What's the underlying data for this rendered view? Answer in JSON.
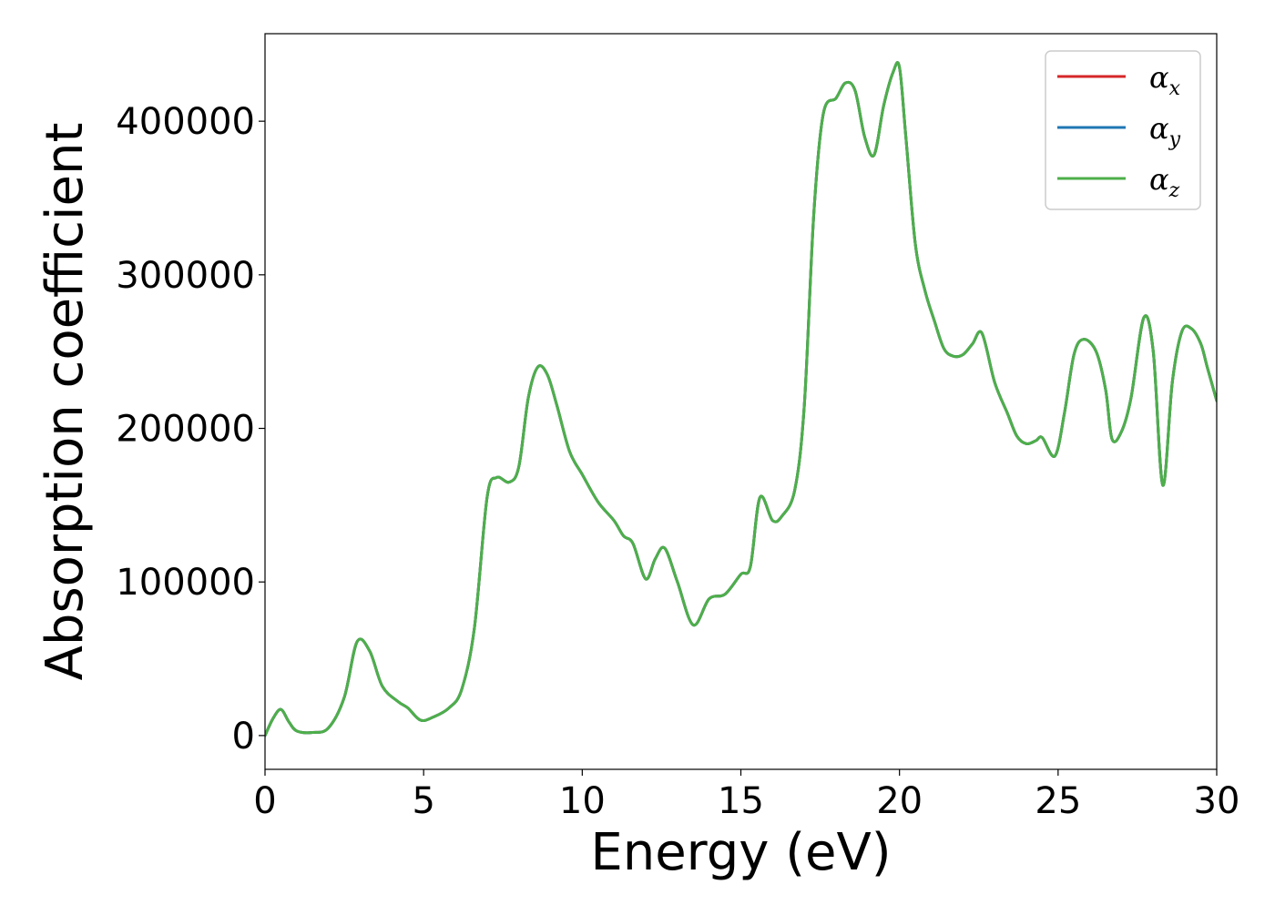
{
  "chart_data": {
    "type": "line",
    "xlabel": "Energy (eV)",
    "ylabel": "Absorption coefficient",
    "xlim": [
      0,
      30
    ],
    "ylim": [
      -22000,
      457000
    ],
    "xticks": [
      0,
      5,
      10,
      15,
      20,
      25,
      30
    ],
    "xtick_labels": [
      "0",
      "5",
      "10",
      "15",
      "20",
      "25",
      "30"
    ],
    "yticks": [
      0,
      100000,
      200000,
      300000,
      400000
    ],
    "ytick_labels": [
      "0",
      "100000",
      "200000",
      "300000",
      "400000"
    ],
    "grid": false,
    "legend_position": "top-right",
    "colors": {
      "alpha_x": "#d62728",
      "alpha_y": "#1f77b4",
      "alpha_z": "#4daf4a",
      "frame": "#000000",
      "legend_border": "#cccccc"
    },
    "series": [
      {
        "name": "α_x",
        "legend_symbol": "α",
        "legend_subscript": "x",
        "color": "#d62728",
        "x": [
          0,
          0.25,
          0.5,
          0.75,
          1.0,
          1.5,
          2.0,
          2.5,
          2.9,
          3.3,
          3.7,
          4.2,
          4.5,
          4.9,
          5.3,
          5.8,
          6.2,
          6.6,
          7.0,
          7.3,
          7.7,
          8.0,
          8.3,
          8.6,
          8.9,
          9.2,
          9.6,
          10.0,
          10.5,
          11.0,
          11.3,
          11.6,
          12.0,
          12.3,
          12.6,
          13.0,
          13.5,
          14.0,
          14.5,
          15.0,
          15.3,
          15.6,
          16.0,
          16.3,
          16.7,
          17.0,
          17.3,
          17.6,
          18.0,
          18.3,
          18.6,
          18.9,
          19.2,
          19.5,
          19.8,
          20.0,
          20.2,
          20.5,
          20.8,
          21.1,
          21.4,
          21.7,
          22.0,
          22.3,
          22.6,
          23.0,
          23.4,
          23.7,
          24.0,
          24.3,
          24.5,
          24.9,
          25.2,
          25.5,
          25.8,
          26.2,
          26.5,
          26.7,
          27.0,
          27.3,
          27.7,
          28.0,
          28.3,
          28.6,
          28.9,
          29.2,
          29.5,
          29.7,
          30.0
        ],
        "y": [
          0,
          11000,
          17000,
          9000,
          3000,
          2000,
          5000,
          25000,
          61000,
          55000,
          32000,
          22000,
          18000,
          10000,
          12000,
          18000,
          30000,
          70000,
          155000,
          168000,
          165000,
          175000,
          220000,
          240000,
          235000,
          215000,
          185000,
          170000,
          152000,
          140000,
          130000,
          125000,
          102000,
          115000,
          122000,
          100000,
          72000,
          89000,
          92000,
          105000,
          110000,
          155000,
          140000,
          143000,
          160000,
          215000,
          340000,
          405000,
          415000,
          425000,
          420000,
          390000,
          378000,
          410000,
          432000,
          435000,
          390000,
          320000,
          290000,
          270000,
          252000,
          247000,
          248000,
          255000,
          262000,
          230000,
          210000,
          195000,
          190000,
          192000,
          194000,
          182000,
          210000,
          248000,
          258000,
          250000,
          225000,
          193000,
          198000,
          220000,
          272000,
          250000,
          163000,
          230000,
          263000,
          265000,
          255000,
          240000,
          218000
        ]
      },
      {
        "name": "α_y",
        "legend_symbol": "α",
        "legend_subscript": "y",
        "color": "#1f77b4",
        "x": [
          0,
          0.25,
          0.5,
          0.75,
          1.0,
          1.5,
          2.0,
          2.5,
          2.9,
          3.3,
          3.7,
          4.2,
          4.5,
          4.9,
          5.3,
          5.8,
          6.2,
          6.6,
          7.0,
          7.3,
          7.7,
          8.0,
          8.3,
          8.6,
          8.9,
          9.2,
          9.6,
          10.0,
          10.5,
          11.0,
          11.3,
          11.6,
          12.0,
          12.3,
          12.6,
          13.0,
          13.5,
          14.0,
          14.5,
          15.0,
          15.3,
          15.6,
          16.0,
          16.3,
          16.7,
          17.0,
          17.3,
          17.6,
          18.0,
          18.3,
          18.6,
          18.9,
          19.2,
          19.5,
          19.8,
          20.0,
          20.2,
          20.5,
          20.8,
          21.1,
          21.4,
          21.7,
          22.0,
          22.3,
          22.6,
          23.0,
          23.4,
          23.7,
          24.0,
          24.3,
          24.5,
          24.9,
          25.2,
          25.5,
          25.8,
          26.2,
          26.5,
          26.7,
          27.0,
          27.3,
          27.7,
          28.0,
          28.3,
          28.6,
          28.9,
          29.2,
          29.5,
          29.7,
          30.0
        ],
        "y": [
          0,
          11000,
          17000,
          9000,
          3000,
          2000,
          5000,
          25000,
          61000,
          55000,
          32000,
          22000,
          18000,
          10000,
          12000,
          18000,
          30000,
          70000,
          155000,
          168000,
          165000,
          175000,
          220000,
          240000,
          235000,
          215000,
          185000,
          170000,
          152000,
          140000,
          130000,
          125000,
          102000,
          115000,
          122000,
          100000,
          72000,
          89000,
          92000,
          105000,
          110000,
          155000,
          140000,
          143000,
          160000,
          215000,
          340000,
          405000,
          415000,
          425000,
          420000,
          390000,
          378000,
          410000,
          432000,
          435000,
          390000,
          320000,
          290000,
          270000,
          252000,
          247000,
          248000,
          255000,
          262000,
          230000,
          210000,
          195000,
          190000,
          192000,
          194000,
          182000,
          210000,
          248000,
          258000,
          250000,
          225000,
          193000,
          198000,
          220000,
          272000,
          250000,
          163000,
          230000,
          263000,
          265000,
          255000,
          240000,
          218000
        ]
      },
      {
        "name": "α_z",
        "legend_symbol": "α",
        "legend_subscript": "z",
        "color": "#4daf4a",
        "x": [
          0,
          0.25,
          0.5,
          0.75,
          1.0,
          1.5,
          2.0,
          2.5,
          2.9,
          3.3,
          3.7,
          4.2,
          4.5,
          4.9,
          5.3,
          5.8,
          6.2,
          6.6,
          7.0,
          7.3,
          7.7,
          8.0,
          8.3,
          8.6,
          8.9,
          9.2,
          9.6,
          10.0,
          10.5,
          11.0,
          11.3,
          11.6,
          12.0,
          12.3,
          12.6,
          13.0,
          13.5,
          14.0,
          14.5,
          15.0,
          15.3,
          15.6,
          16.0,
          16.3,
          16.7,
          17.0,
          17.3,
          17.6,
          18.0,
          18.3,
          18.6,
          18.9,
          19.2,
          19.5,
          19.8,
          20.0,
          20.2,
          20.5,
          20.8,
          21.1,
          21.4,
          21.7,
          22.0,
          22.3,
          22.6,
          23.0,
          23.4,
          23.7,
          24.0,
          24.3,
          24.5,
          24.9,
          25.2,
          25.5,
          25.8,
          26.2,
          26.5,
          26.7,
          27.0,
          27.3,
          27.7,
          28.0,
          28.3,
          28.6,
          28.9,
          29.2,
          29.5,
          29.7,
          30.0
        ],
        "y": [
          0,
          11000,
          17000,
          9000,
          3000,
          2000,
          5000,
          25000,
          61000,
          55000,
          32000,
          22000,
          18000,
          10000,
          12000,
          18000,
          30000,
          70000,
          155000,
          168000,
          165000,
          175000,
          220000,
          240000,
          235000,
          215000,
          185000,
          170000,
          152000,
          140000,
          130000,
          125000,
          102000,
          115000,
          122000,
          100000,
          72000,
          89000,
          92000,
          105000,
          110000,
          155000,
          140000,
          143000,
          160000,
          215000,
          340000,
          405000,
          415000,
          425000,
          420000,
          390000,
          378000,
          410000,
          432000,
          435000,
          390000,
          320000,
          290000,
          270000,
          252000,
          247000,
          248000,
          255000,
          262000,
          230000,
          210000,
          195000,
          190000,
          192000,
          194000,
          182000,
          210000,
          248000,
          258000,
          250000,
          225000,
          193000,
          198000,
          220000,
          272000,
          250000,
          163000,
          230000,
          263000,
          265000,
          255000,
          240000,
          218000
        ]
      }
    ]
  }
}
